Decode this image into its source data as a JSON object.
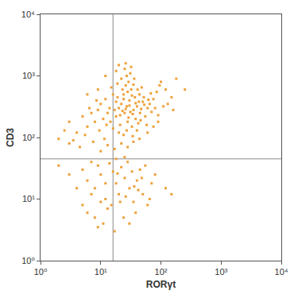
{
  "chart_data": {
    "type": "scatter",
    "x_label": "RORγt",
    "y_label": "CD3",
    "color": "#eea13a",
    "marker": "square",
    "log": true,
    "grid": false,
    "xlim": [
      1,
      10000
    ],
    "ylim": [
      1,
      10000
    ],
    "xticks": [
      {
        "value": 1,
        "label": "10⁰"
      },
      {
        "value": 10,
        "label": "10¹"
      },
      {
        "value": 100,
        "label": "10²"
      },
      {
        "value": 1000,
        "label": "10³"
      },
      {
        "value": 10000,
        "label": "10⁴"
      }
    ],
    "yticks": [
      {
        "value": 1,
        "label": "10⁰"
      },
      {
        "value": 10,
        "label": "10¹"
      },
      {
        "value": 100,
        "label": "10²"
      },
      {
        "value": 1000,
        "label": "10³"
      },
      {
        "value": 10000,
        "label": "10⁴"
      }
    ],
    "quadrant_lines": {
      "x": 16,
      "y": 45
    },
    "x": [
      20,
      25,
      30,
      22,
      35,
      18,
      28,
      40,
      24,
      32,
      19,
      26,
      45,
      50,
      38,
      21,
      27,
      33,
      42,
      55,
      60,
      17,
      23,
      29,
      36,
      31,
      25,
      44,
      48,
      52,
      65,
      70,
      75,
      85,
      95,
      110,
      120,
      150,
      18,
      16,
      14,
      13,
      12,
      11,
      10,
      9,
      8,
      7,
      6,
      5,
      4,
      3,
      3.5,
      5.5,
      6.5,
      8.5,
      9.5,
      11.5,
      7.5,
      4.5,
      12.5,
      14.5,
      16,
      20,
      24,
      34,
      40,
      46,
      58,
      15,
      22,
      27,
      19,
      37,
      43,
      30,
      26,
      23,
      21,
      34,
      38,
      29,
      31,
      27,
      24,
      33,
      47,
      53,
      62,
      68,
      80,
      90,
      100,
      130,
      180,
      250,
      160,
      28,
      35,
      41,
      20,
      18,
      26,
      32,
      12,
      9,
      6,
      2.5,
      3,
      2,
      13,
      17,
      22,
      28,
      35,
      44,
      60,
      75,
      90,
      10,
      5,
      6,
      8,
      10,
      12,
      15,
      18,
      20,
      25,
      30,
      35,
      40,
      45,
      50,
      60,
      70,
      80,
      55,
      28,
      22,
      16,
      14,
      9,
      7,
      6,
      8,
      11,
      13,
      17,
      24,
      30,
      38,
      12,
      10,
      19,
      26,
      33,
      42,
      65,
      7,
      4,
      3,
      5,
      9,
      21,
      36,
      48,
      18,
      25,
      120,
      150,
      2
    ],
    "values": [
      300,
      250,
      400,
      350,
      280,
      220,
      180,
      320,
      500,
      600,
      450,
      700,
      250,
      380,
      200,
      160,
      130,
      150,
      170,
      220,
      300,
      280,
      600,
      800,
      900,
      1100,
      1300,
      500,
      650,
      450,
      350,
      260,
      420,
      550,
      700,
      320,
      600,
      450,
      380,
      500,
      300,
      250,
      420,
      200,
      350,
      280,
      180,
      250,
      150,
      220,
      120,
      180,
      90,
      110,
      300,
      400,
      130,
      95,
      85,
      70,
      160,
      180,
      140,
      120,
      110,
      105,
      130,
      190,
      160,
      650,
      900,
      1000,
      750,
      450,
      380,
      330,
      290,
      270,
      230,
      240,
      360,
      210,
      260,
      320,
      420,
      480,
      290,
      340,
      410,
      520,
      300,
      230,
      800,
      350,
      900,
      600,
      280,
      550,
      720,
      600,
      1500,
      1200,
      1600,
      1400,
      1000,
      600,
      500,
      130,
      80,
      95,
      75,
      65,
      80,
      70,
      85,
      95,
      120,
      150,
      180,
      60,
      30,
      20,
      15,
      25,
      10,
      8,
      18,
      12,
      22,
      15,
      9,
      20,
      30,
      12,
      8,
      18,
      25,
      35,
      40,
      33,
      28,
      38,
      35,
      12,
      6,
      5,
      4,
      7,
      3,
      5,
      4,
      6,
      18,
      9,
      26,
      11,
      28,
      14,
      10,
      40,
      15,
      25,
      8,
      3.5,
      9,
      16,
      22,
      45,
      48,
      15,
      12,
      35
    ]
  }
}
